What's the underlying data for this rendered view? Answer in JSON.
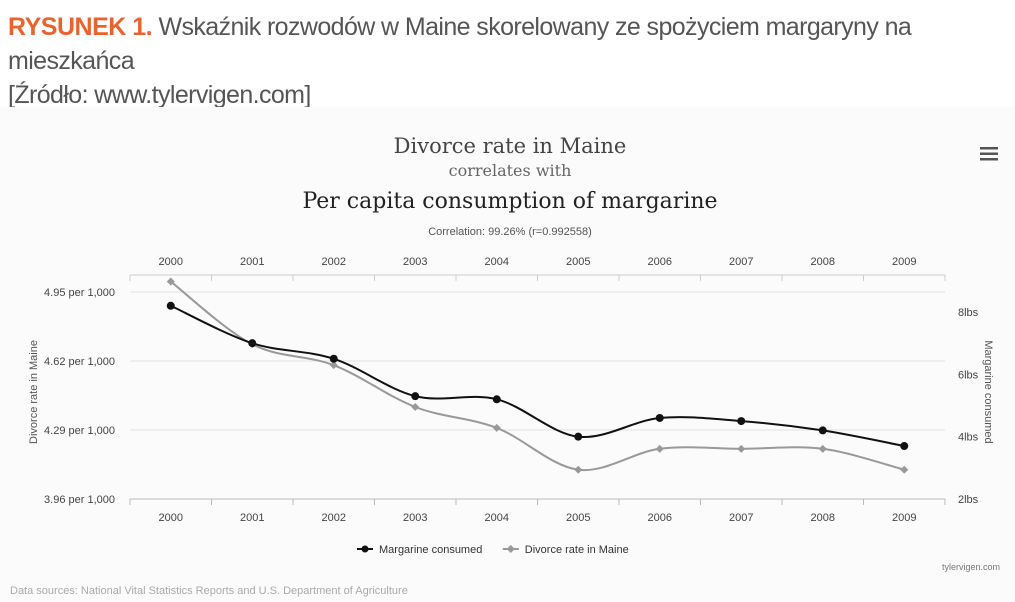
{
  "caption": {
    "label": "RYSUNEK 1.",
    "text": " Wskaźnik rozwodów w Maine skorelowany ze spożyciem margaryny na mieszkańca",
    "source": "[Źródło: www.tylervigen.com]"
  },
  "menu_icon": "hamburger-menu-icon",
  "chart_data": {
    "type": "line",
    "title": "Divorce rate in Maine",
    "subtitle": "correlates with",
    "main_title": "Per capita consumption of margarine",
    "correlation": "Correlation: 99.26% (r=0.992558)",
    "categories": [
      "2000",
      "2001",
      "2002",
      "2003",
      "2004",
      "2005",
      "2006",
      "2007",
      "2008",
      "2009"
    ],
    "y_left": {
      "label": "Divorce rate in Maine",
      "ticks": [
        "4.95 per 1,000",
        "4.62 per 1,000",
        "4.29 per 1,000",
        "3.96 per 1,000"
      ],
      "tick_values": [
        4.95,
        4.62,
        4.29,
        3.96
      ],
      "ylim": [
        3.96,
        4.95
      ]
    },
    "y_right": {
      "label": "Margarine consumed",
      "ticks": [
        "8lbs",
        "6lbs",
        "4lbs",
        "2lbs"
      ],
      "tick_values": [
        8,
        6,
        4,
        2
      ],
      "ylim": [
        2,
        8
      ]
    },
    "grid": true,
    "legend_position": "bottom",
    "series": [
      {
        "name": "Margarine consumed",
        "axis": "right",
        "color": "#111111",
        "values": [
          8.2,
          7.0,
          6.5,
          5.3,
          5.2,
          4.0,
          4.6,
          4.5,
          4.2,
          3.7
        ]
      },
      {
        "name": "Divorce rate in Maine",
        "axis": "left",
        "color": "#999999",
        "values": [
          5.0,
          4.7,
          4.6,
          4.4,
          4.3,
          4.1,
          4.2,
          4.2,
          4.2,
          4.1
        ]
      }
    ],
    "credit": "tylervigen.com",
    "sources": "Data sources: National Vital Statistics Reports and U.S. Department of Agriculture"
  }
}
